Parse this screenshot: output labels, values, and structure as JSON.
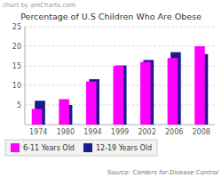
{
  "chart_data": {
    "type": "bar",
    "title": "Percentage of U.S Children Who Are Obese",
    "categories": [
      "1974",
      "1980",
      "1994",
      "1999",
      "2002",
      "2006",
      "2008"
    ],
    "series": [
      {
        "name": "6-11 Years Old",
        "color": "#FF00FF",
        "values": [
          4.0,
          6.5,
          11.0,
          15.0,
          16.0,
          17.0,
          20.0
        ]
      },
      {
        "name": "12-19 Years Old",
        "color": "#1C1C8C",
        "values": [
          6.1,
          5.0,
          11.6,
          15.1,
          16.5,
          18.5,
          18.0
        ]
      }
    ],
    "ylim": [
      0,
      25
    ],
    "yticks": [
      5,
      10,
      15,
      20,
      25
    ],
    "grid": true,
    "legend": "bottom",
    "annotations": [
      "chart by amCharts.com",
      "Source: Centers for Disease Control"
    ]
  }
}
